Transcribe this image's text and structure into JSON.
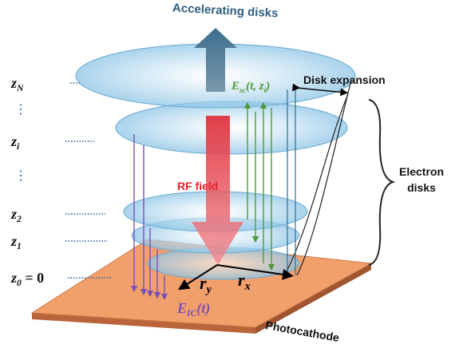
{
  "title": "Accelerating disks",
  "disk_expansion": "Disk expansion",
  "field_sc": {
    "base": "E",
    "sub": "sc",
    "args": "(t, z",
    "arg_sub": "i",
    "close": ")"
  },
  "rf_field": "RF field",
  "electron_disks": [
    "Electron",
    "disks"
  ],
  "radius_y": {
    "base": "r",
    "sub": "y"
  },
  "radius_x": {
    "base": "r",
    "sub": "x"
  },
  "field_ic": {
    "base": "E",
    "sub": "IC",
    "args": "(t)"
  },
  "photocathode": "Photocathode",
  "z_labels": [
    {
      "base": "z",
      "sub": "N"
    },
    {
      "base": "z",
      "sub": "i"
    },
    {
      "base": "z",
      "sub": "2"
    },
    {
      "base": "z",
      "sub": "1"
    },
    {
      "base": "z",
      "sub": "0",
      "suffix": " = 0"
    }
  ],
  "ellipsis": "⋮"
}
